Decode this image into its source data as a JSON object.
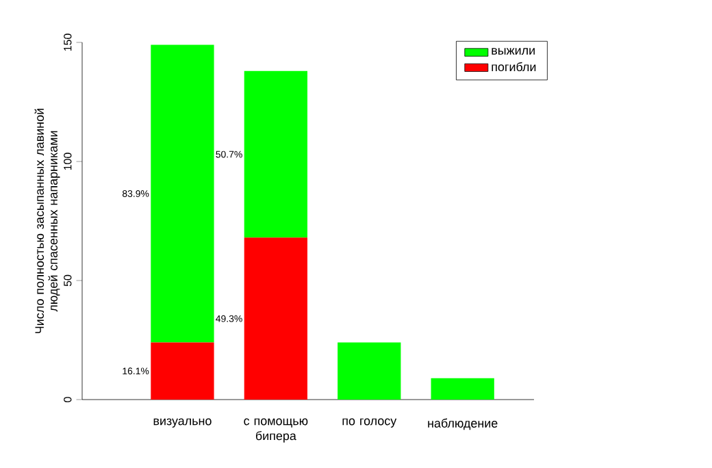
{
  "chart_data": {
    "type": "bar",
    "stacked": true,
    "ylabel": "Число полностью засыпанных лавиной людей спасенных напарниками",
    "categories": [
      "визуально",
      "с помощью бипера",
      "по голосу",
      "наблюдение"
    ],
    "series": [
      {
        "name": "погибли",
        "color": "#ff0000",
        "values": [
          24,
          68,
          0,
          0
        ]
      },
      {
        "name": "выжили",
        "color": "#00ff00",
        "values": [
          125,
          70,
          24,
          9
        ]
      }
    ],
    "annotations": [
      "16.1%",
      "83.9%",
      "49.3%",
      "50.7%"
    ],
    "ylim": [
      0,
      150
    ],
    "yticks": [
      0,
      50,
      100,
      150
    ],
    "legend": "top right",
    "grid": false
  }
}
